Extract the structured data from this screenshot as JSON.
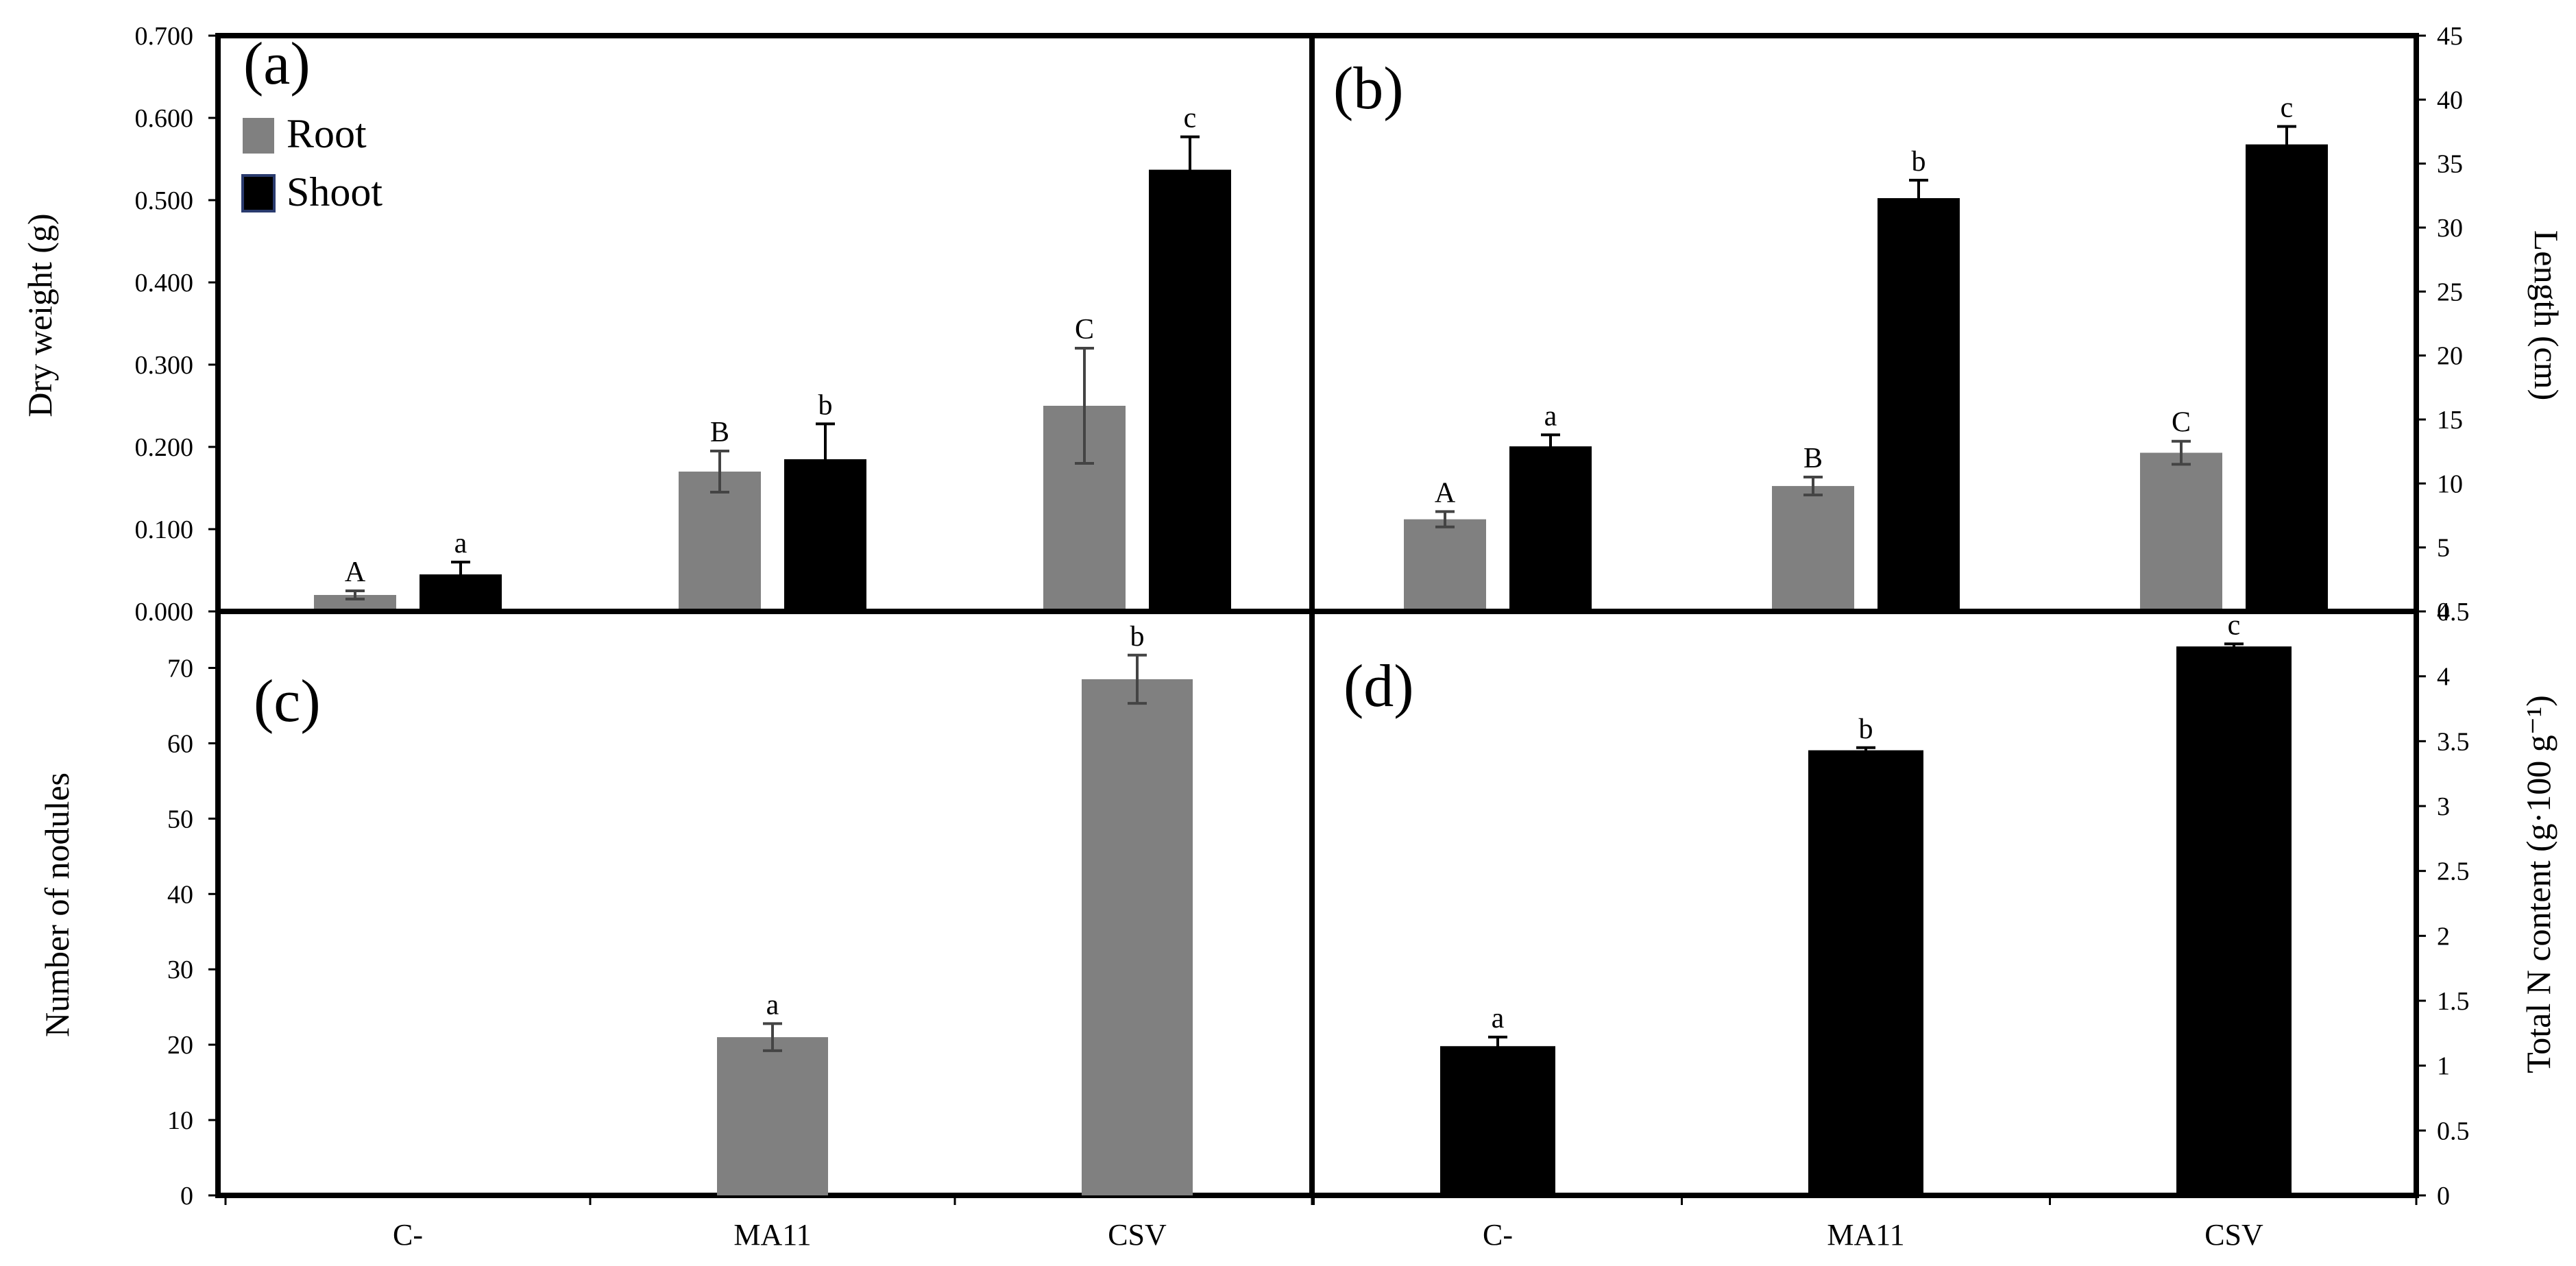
{
  "colors": {
    "root": "#808080",
    "shoot": "#000000",
    "error_bar_root": "#444444",
    "error_bar_shoot": "#000000"
  },
  "chart_data": [
    {
      "id": "a",
      "panel_label": "(a)",
      "type": "bar",
      "categories": [
        "C-",
        "MA11",
        "CSV"
      ],
      "ylabel": "Dry weight (g)",
      "ylim": [
        0,
        0.7
      ],
      "yticks": [
        0,
        0.1,
        0.2,
        0.3,
        0.4,
        0.5,
        0.6,
        0.7
      ],
      "ytick_decimals": 3,
      "legend": {
        "position": "top-left",
        "entries": [
          "Root",
          "Shoot"
        ]
      },
      "series": [
        {
          "name": "Root",
          "color": "#808080",
          "values": [
            0.02,
            0.17,
            0.25
          ],
          "errors": [
            0.005,
            0.025,
            0.07
          ],
          "labels": [
            "A",
            "B",
            "C"
          ]
        },
        {
          "name": "Shoot",
          "color": "#000000",
          "values": [
            0.045,
            0.185,
            0.537
          ],
          "errors": [
            0.015,
            0.043,
            0.04
          ],
          "labels": [
            "a",
            "b",
            "c"
          ]
        }
      ]
    },
    {
      "id": "b",
      "panel_label": "(b)",
      "type": "bar",
      "categories": [
        "C-",
        "MA11",
        "CSV"
      ],
      "ylabel": "Length (cm)",
      "ylim": [
        0,
        45
      ],
      "yticks": [
        0,
        5,
        10,
        15,
        20,
        25,
        30,
        35,
        40,
        45
      ],
      "ytick_decimals": 0,
      "series": [
        {
          "name": "Root",
          "color": "#808080",
          "values": [
            7.2,
            9.8,
            12.4
          ],
          "errors": [
            0.6,
            0.7,
            0.9
          ],
          "labels": [
            "A",
            "B",
            "C"
          ]
        },
        {
          "name": "Shoot",
          "color": "#000000",
          "values": [
            12.9,
            32.3,
            36.5
          ],
          "errors": [
            0.9,
            1.4,
            1.4
          ],
          "labels": [
            "a",
            "b",
            "c"
          ]
        }
      ]
    },
    {
      "id": "c",
      "panel_label": "(c)",
      "type": "bar",
      "categories": [
        "C-",
        "MA11",
        "CSV"
      ],
      "ylabel": "Number of nodules",
      "ylim": [
        0,
        77.5
      ],
      "yticks": [
        0,
        10,
        20,
        30,
        40,
        50,
        60,
        70
      ],
      "ytick_decimals": 0,
      "series": [
        {
          "name": "Root",
          "color": "#808080",
          "values": [
            0,
            21,
            68.5
          ],
          "errors": [
            0,
            1.8,
            3.2
          ],
          "labels": [
            "",
            "a",
            "b"
          ]
        }
      ]
    },
    {
      "id": "d",
      "panel_label": "(d)",
      "type": "bar",
      "categories": [
        "C-",
        "MA11",
        "CSV"
      ],
      "ylabel": "Total N content (g·100 g⁻¹)",
      "ylim": [
        0,
        4.5
      ],
      "yticks": [
        0,
        0.5,
        1,
        1.5,
        2,
        2.5,
        3,
        3.5,
        4,
        4.5
      ],
      "ytick_decimals": -1,
      "series": [
        {
          "name": "Shoot",
          "color": "#000000",
          "values": [
            1.15,
            3.43,
            4.23
          ],
          "errors": [
            0.07,
            0.02,
            0.02
          ],
          "labels": [
            "a",
            "b",
            "c"
          ]
        }
      ]
    }
  ]
}
